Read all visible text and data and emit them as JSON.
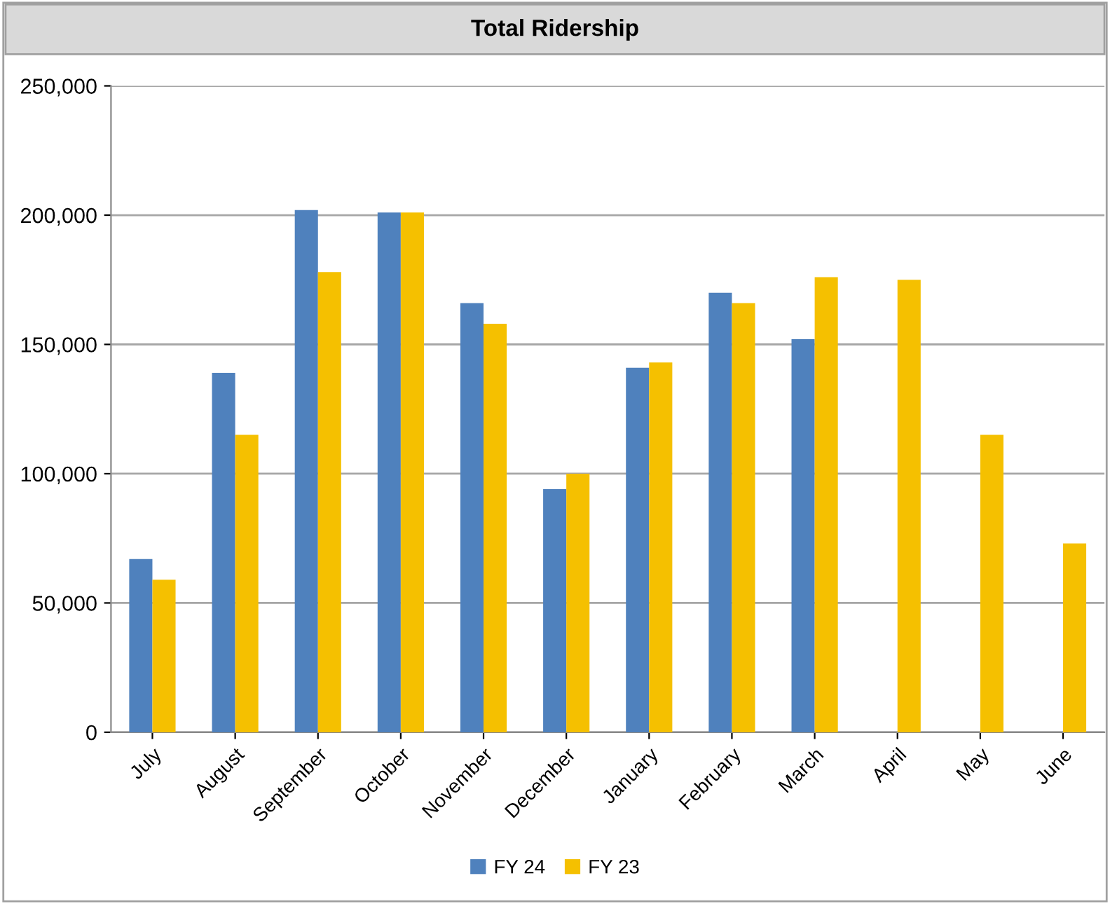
{
  "chart_data": {
    "type": "bar",
    "title": "Total Ridership",
    "categories": [
      "July",
      "August",
      "September",
      "October",
      "November",
      "December",
      "January",
      "February",
      "March",
      "April",
      "May",
      "June"
    ],
    "series": [
      {
        "name": "FY 24",
        "color": "#4f81bd",
        "values": [
          67000,
          139000,
          202000,
          201000,
          166000,
          94000,
          141000,
          170000,
          152000,
          null,
          null,
          null
        ]
      },
      {
        "name": "FY 23",
        "color": "#f5c000",
        "values": [
          59000,
          115000,
          178000,
          201000,
          158000,
          100000,
          143000,
          166000,
          176000,
          175000,
          115000,
          73000
        ]
      }
    ],
    "ylim": [
      0,
      250000
    ],
    "yticks": [
      {
        "value": 0,
        "label": "0"
      },
      {
        "value": 50000,
        "label": "50,000"
      },
      {
        "value": 100000,
        "label": "100,000"
      },
      {
        "value": 150000,
        "label": "150,000"
      },
      {
        "value": 200000,
        "label": "200,000"
      },
      {
        "value": 250000,
        "label": "250,000"
      }
    ],
    "grid": "y",
    "legend": "bottom"
  }
}
